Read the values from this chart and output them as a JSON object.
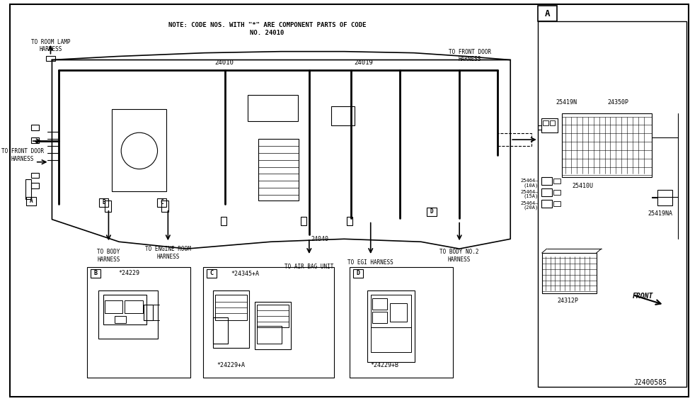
{
  "bg_color": "#ffffff",
  "line_color": "#000000",
  "fig_width": 9.75,
  "fig_height": 5.66,
  "dpi": 100,
  "note_text": "NOTE: CODE NOS. WITH \"*\" ARE COMPONENT PARTS OF CODE\nNO. 24010",
  "label_24010": "24010",
  "label_24019": "24019",
  "label_24040": "24040",
  "to_room_lamp": "TO ROOM LAMP\nHARNESS",
  "to_front_door_left": "TO FRONT DOOR\nHARNESS",
  "to_front_door_right": "TO FRONT DOOR\nHARNESS",
  "to_body": "TO BODY\nHARNESS",
  "to_engine": "TO ENGINE ROOM\nHARNESS",
  "to_air_bag": "TO AIR BAG UNIT",
  "to_egi": "TO EGI HARNESS",
  "to_body_no2": "TO BODY NO.2\nHARNESS",
  "part_24229_B": "*24229",
  "part_24345_C": "*24345+A",
  "part_24229_C": "*24229+A",
  "part_24229_D": "*24229+B",
  "part_25419N": "25419N",
  "part_24350P": "24350P",
  "part_25410U": "25410U",
  "part_25419NA": "25419NA",
  "part_24312P": "24312P",
  "front_label": "FRONT",
  "diagram_code": "J2400585",
  "section_A_label": "A"
}
